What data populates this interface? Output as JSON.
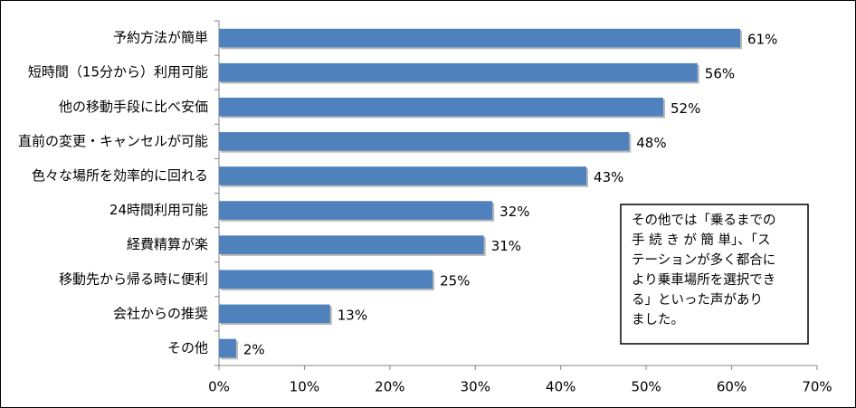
{
  "chart_data": {
    "type": "bar",
    "orientation": "horizontal",
    "categories": [
      "予約方法が簡単",
      "短時間（15分から）利用可能",
      "他の移動手段に比べ安価",
      "直前の変更・キャンセルが可能",
      "色々な場所を効率的に回れる",
      "24時間利用可能",
      "経費精算が楽",
      "移動先から帰る時に便利",
      "会社からの推奨",
      "その他"
    ],
    "values": [
      61,
      56,
      52,
      48,
      43,
      32,
      31,
      25,
      13,
      2
    ],
    "value_labels": [
      "61%",
      "56%",
      "52%",
      "48%",
      "43%",
      "32%",
      "31%",
      "25%",
      "13%",
      "2%"
    ],
    "color": "#4f81bd",
    "xlim": [
      0,
      70
    ],
    "xticks": [
      {
        "value": 0,
        "label": "0%"
      },
      {
        "value": 10,
        "label": "10%"
      },
      {
        "value": 20,
        "label": "20%"
      },
      {
        "value": 30,
        "label": "30%"
      },
      {
        "value": 40,
        "label": "40%"
      },
      {
        "value": 50,
        "label": "50%"
      },
      {
        "value": 60,
        "label": "60%"
      },
      {
        "value": 70,
        "label": "70%"
      }
    ],
    "grid": false,
    "annotation": [
      "その他では「乗るまでの",
      "手 続 き が 簡 単」、「ス",
      "テーションが多く都合に",
      "より乗車場所を選択でき",
      "る」といった声があり",
      "ました。"
    ]
  }
}
